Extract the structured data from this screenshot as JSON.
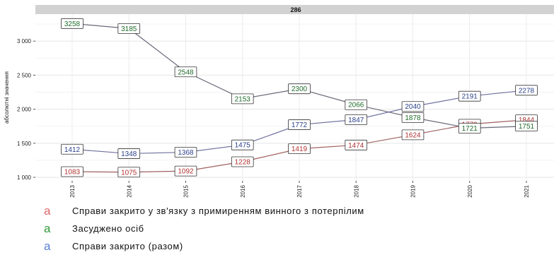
{
  "chart_data": {
    "type": "line",
    "strip_title": "286",
    "ylabel": "абсолютні значення",
    "x": [
      "2013",
      "2014",
      "2015",
      "2016",
      "2017",
      "2018",
      "2019",
      "2020",
      "2021"
    ],
    "y_ticks": [
      1000,
      1500,
      2000,
      2500,
      3000
    ],
    "y_tick_labels": [
      "1 000",
      "1 500",
      "2 000",
      "2 500",
      "3 000"
    ],
    "ylim": [
      990,
      3340
    ],
    "grid": true,
    "legend_position": "bottom-left",
    "legend_key": "a",
    "series": [
      {
        "name": "Справи закрито у зв'язку з примиренням винного з потерпілим",
        "color": "#e06a6a",
        "line_color": "#a06060",
        "values": [
          1083,
          1075,
          1092,
          1228,
          1419,
          1474,
          1624,
          1779,
          1844
        ]
      },
      {
        "name": "Засуджено осіб",
        "color": "#2f9a3a",
        "line_color": "#6a6a7a",
        "values": [
          3258,
          3185,
          2548,
          2153,
          2300,
          2066,
          1878,
          1721,
          1751
        ]
      },
      {
        "name": "Справи закрито (разом)",
        "color": "#5a7fd6",
        "line_color": "#7070a0",
        "values": [
          1412,
          1348,
          1368,
          1475,
          1772,
          1847,
          2040,
          2191,
          2278
        ]
      }
    ]
  }
}
